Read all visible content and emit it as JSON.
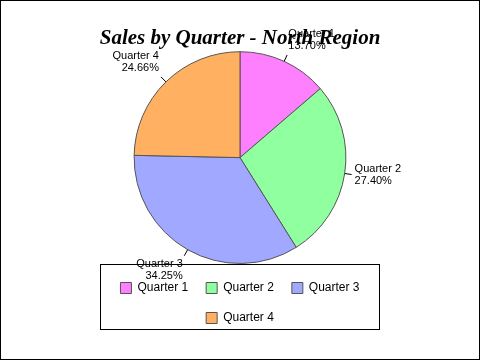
{
  "chart_data": {
    "type": "pie",
    "title": "Sales by Quarter - North Region",
    "categories": [
      "Quarter 1",
      "Quarter 2",
      "Quarter 3",
      "Quarter 4"
    ],
    "values": [
      13.7,
      27.4,
      34.25,
      24.66
    ],
    "value_labels": [
      "13.70%",
      "27.40%",
      "34.25%",
      "24.66%"
    ],
    "colors": [
      "#ff80ff",
      "#90ff9f",
      "#a0a8ff",
      "#ffb060"
    ],
    "legend": "bottom",
    "data_labels": true
  }
}
